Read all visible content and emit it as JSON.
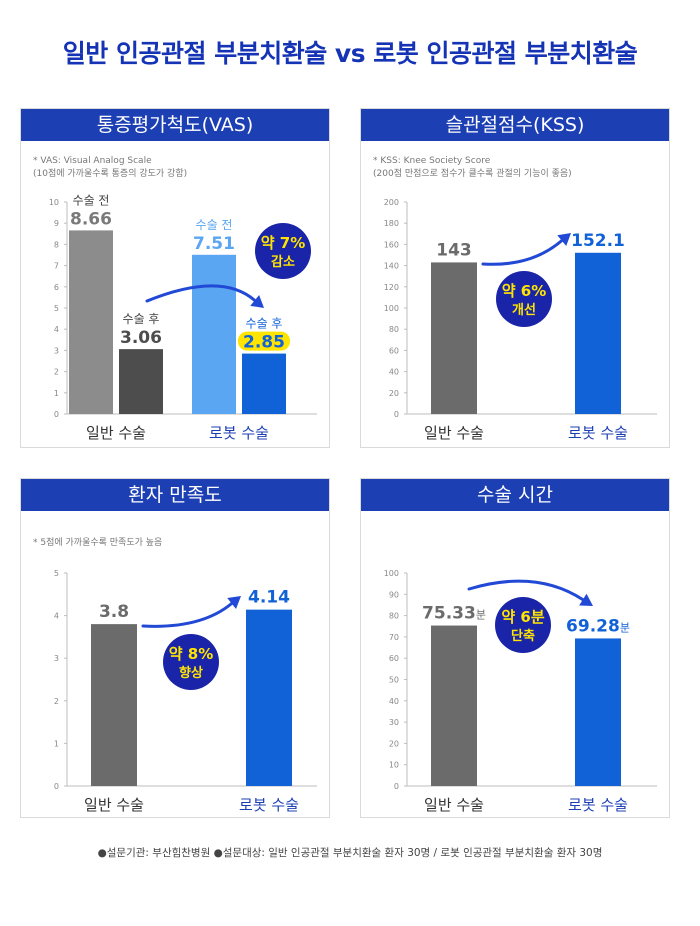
{
  "title": "일반 인공관절 부분치환술 vs 로봇 인공관절 부분치환술",
  "footer": "●설문기관: 부산힘찬병원  ●설문대상: 일반 인공관절 부분치환술 환자 30명 / 로봇 인공관절 부분치환술 환자 30명",
  "colors": {
    "header": "#1c3fb4",
    "title": "#1533b5",
    "badge": "#1a24a8",
    "badge_text": "#ffe400",
    "arrow": "#2149d6"
  },
  "chart_data": [
    {
      "type": "bar",
      "title": "통증평가척도(VAS)",
      "notes": [
        "* VAS: Visual Analog Scale",
        "(10점에 가까울수록 통증의 강도가 강함)"
      ],
      "categories": [
        "일반 수술",
        "로봇 수술"
      ],
      "series": [
        {
          "name": "수술 전",
          "values": [
            8.66,
            7.51
          ],
          "labels": [
            "8.66",
            "7.51"
          ],
          "colors": [
            "#8c8c8c",
            "#5aa6f2"
          ]
        },
        {
          "name": "수술 후",
          "values": [
            3.06,
            2.85
          ],
          "labels": [
            "3.06",
            "2.85"
          ],
          "colors": [
            "#4d4d4d",
            "#1262d7"
          ]
        }
      ],
      "ylim": [
        0,
        10
      ],
      "yticks": [
        "0",
        "1",
        "2",
        "3",
        "4",
        "5",
        "6",
        "7",
        "8",
        "9",
        "10"
      ],
      "badge": [
        "약 7%",
        "감소"
      ]
    },
    {
      "type": "bar",
      "title": "슬관절점수(KSS)",
      "notes": [
        "* KSS: Knee Society Score",
        "(200점 만점으로 점수가 클수록 관절의 기능이 좋음)"
      ],
      "categories": [
        "일반 수술",
        "로봇 수술"
      ],
      "values": [
        143,
        152.1
      ],
      "labels": [
        "143",
        "152.1"
      ],
      "colors": [
        "#6b6b6b",
        "#1262d7"
      ],
      "ylim": [
        0,
        200
      ],
      "yticks": [
        "0",
        "20",
        "40",
        "60",
        "80",
        "100",
        "120",
        "140",
        "160",
        "180",
        "200"
      ],
      "badge": [
        "약 6%",
        "개선"
      ]
    },
    {
      "type": "bar",
      "title": "환자 만족도",
      "notes": [
        "* 5점에 가까울수록 만족도가 높음"
      ],
      "categories": [
        "일반 수술",
        "로봇 수술"
      ],
      "values": [
        3.8,
        4.14
      ],
      "labels": [
        "3.8",
        "4.14"
      ],
      "colors": [
        "#6b6b6b",
        "#1262d7"
      ],
      "ylim": [
        0,
        5
      ],
      "yticks": [
        "0",
        "1",
        "2",
        "3",
        "4",
        "5"
      ],
      "badge": [
        "약 8%",
        "향상"
      ]
    },
    {
      "type": "bar",
      "title": "수술 시간",
      "notes": [],
      "categories": [
        "일반 수술",
        "로봇 수술"
      ],
      "values": [
        75.33,
        69.28
      ],
      "labels": [
        "75.33",
        "69.28"
      ],
      "unit": "분",
      "colors": [
        "#6b6b6b",
        "#1262d7"
      ],
      "ylim": [
        0,
        100
      ],
      "yticks": [
        "0",
        "10",
        "20",
        "30",
        "40",
        "50",
        "60",
        "70",
        "80",
        "90",
        "100"
      ],
      "badge": [
        "약 6분",
        "단축"
      ]
    }
  ]
}
